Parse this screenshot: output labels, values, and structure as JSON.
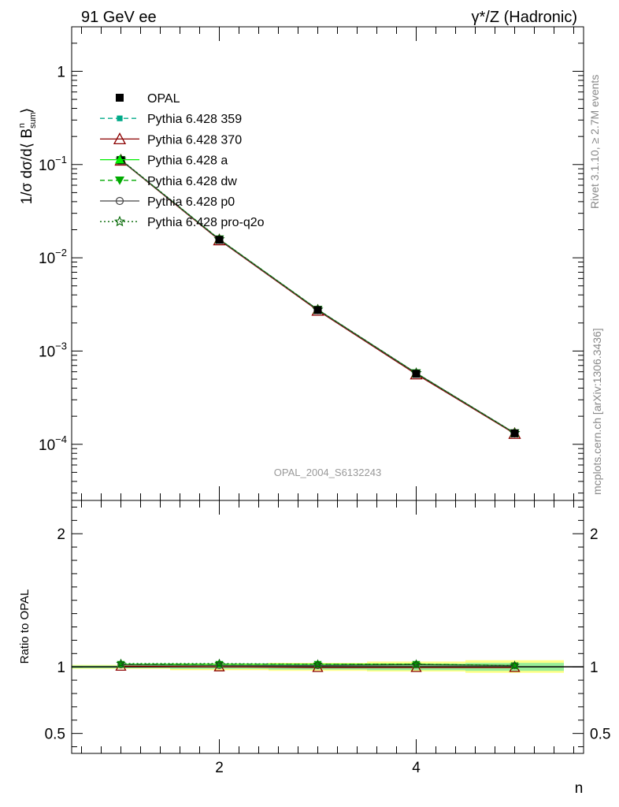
{
  "header": {
    "left_title": "91 GeV ee",
    "right_title": "γ*/Z (Hadronic)",
    "right_title_sup": "*",
    "side_text_top": "Rivet 3.1.10, ≥ 2.7M events",
    "side_text_bottom": "mcplots.cern.ch [arXiv:1306.3436]",
    "watermark": "OPAL_2004_S6132243"
  },
  "chart_data": [
    {
      "type": "line",
      "panel": "main",
      "ylabel": "1/σ dσ/d⟨ B_sum^n ⟩",
      "xlabel": "n",
      "yscale": "log",
      "ylim": [
        2.5e-05,
        3.0
      ],
      "xlim": [
        0.5,
        5.7
      ],
      "y_ticks": [
        {
          "value": 1,
          "label": "1"
        },
        {
          "value": 0.1,
          "label": "10",
          "sup": "−1"
        },
        {
          "value": 0.01,
          "label": "10",
          "sup": "−2"
        },
        {
          "value": 0.001,
          "label": "10",
          "sup": "−3"
        },
        {
          "value": 0.0001,
          "label": "10",
          "sup": "−4"
        }
      ],
      "x": [
        1,
        2,
        3,
        4,
        5
      ],
      "legend_position": "top-left",
      "series": [
        {
          "name": "OPAL",
          "values": [
            0.111,
            0.0156,
            0.00275,
            0.00057,
            0.000131
          ],
          "color": "#000000",
          "marker": "square",
          "line": "none"
        },
        {
          "name": "Pythia 6.428 359",
          "values": [
            0.112,
            0.0158,
            0.00278,
            0.00058,
            0.000132
          ],
          "color": "#00aa88",
          "marker": "small-square",
          "line": "dashed"
        },
        {
          "name": "Pythia 6.428 370",
          "values": [
            0.111,
            0.0155,
            0.00272,
            0.000565,
            0.00013
          ],
          "color": "#8b0000",
          "marker": "open-triangle",
          "line": "solid"
        },
        {
          "name": "Pythia 6.428 a",
          "values": [
            0.112,
            0.0158,
            0.00278,
            0.00058,
            0.000132
          ],
          "color": "#00ee00",
          "marker": "triangle",
          "line": "solid"
        },
        {
          "name": "Pythia 6.428 dw",
          "values": [
            0.112,
            0.0158,
            0.00278,
            0.00058,
            0.000132
          ],
          "color": "#00aa00",
          "marker": "triangle-down",
          "line": "dashed"
        },
        {
          "name": "Pythia 6.428 p0",
          "values": [
            0.112,
            0.0157,
            0.00277,
            0.000578,
            0.000132
          ],
          "color": "#444444",
          "marker": "open-circle",
          "line": "solid"
        },
        {
          "name": "Pythia 6.428 pro-q2o",
          "values": [
            0.113,
            0.0158,
            0.00278,
            0.00058,
            0.000132
          ],
          "color": "#006600",
          "marker": "open-star",
          "line": "dotted"
        }
      ]
    },
    {
      "type": "line",
      "panel": "ratio",
      "ylabel": "Ratio to OPAL",
      "xlabel": "n",
      "ylim": [
        0.35,
        2.25
      ],
      "xlim": [
        0.5,
        5.7
      ],
      "y_ticks": [
        {
          "value": 0.5,
          "label": "0.5"
        },
        {
          "value": 1,
          "label": "1"
        },
        {
          "value": 2,
          "label": "2"
        }
      ],
      "x_ticks": [
        {
          "value": 2,
          "label": "2"
        },
        {
          "value": 4,
          "label": "4"
        }
      ],
      "x": [
        1,
        2,
        3,
        4,
        5
      ],
      "band_yellow": [
        [
          0.985,
          1.015
        ],
        [
          0.975,
          1.025
        ],
        [
          0.97,
          1.03
        ],
        [
          0.965,
          1.04
        ],
        [
          0.955,
          1.05
        ]
      ],
      "band_green": [
        [
          0.99,
          1.01
        ],
        [
          0.985,
          1.015
        ],
        [
          0.98,
          1.02
        ],
        [
          0.975,
          1.025
        ],
        [
          0.97,
          1.03
        ]
      ],
      "series": [
        {
          "name": "Pythia 6.428 359",
          "values": [
            1.02,
            1.02,
            1.02,
            1.02,
            1.01
          ]
        },
        {
          "name": "Pythia 6.428 370",
          "values": [
            1.005,
            1.0,
            0.995,
            0.995,
            0.995
          ]
        },
        {
          "name": "Pythia 6.428 a",
          "values": [
            1.02,
            1.02,
            1.02,
            1.02,
            1.01
          ]
        },
        {
          "name": "Pythia 6.428 dw",
          "values": [
            1.02,
            1.02,
            1.02,
            1.02,
            1.01
          ]
        },
        {
          "name": "Pythia 6.428 p0",
          "values": [
            1.015,
            1.01,
            1.01,
            1.015,
            1.01
          ]
        },
        {
          "name": "Pythia 6.428 pro-q2o",
          "values": [
            1.025,
            1.025,
            1.02,
            1.02,
            1.01
          ]
        }
      ]
    }
  ]
}
